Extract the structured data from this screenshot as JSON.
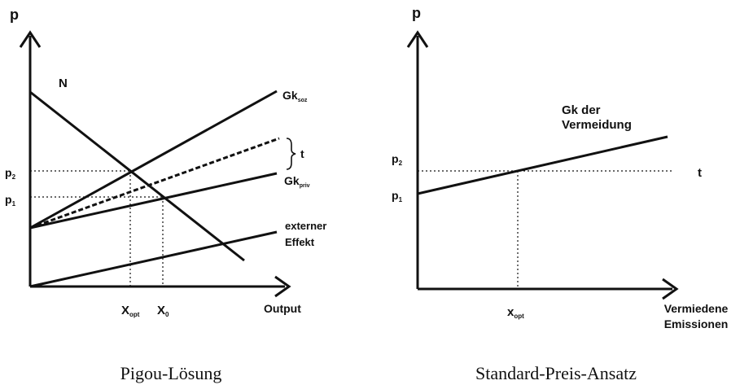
{
  "left": {
    "y_axis_label": "p",
    "x_axis_label": "Output",
    "curve_N": "N",
    "curve_gk_soz": "Gk",
    "curve_gk_soz_sub": "soz",
    "curve_gk_priv": "Gk",
    "curve_gk_priv_sub": "priv",
    "brace_label": "t",
    "external_effect_line1": "externer",
    "external_effect_line2": "Effekt",
    "p2_label": "p",
    "p2_sub": "2",
    "p1_label": "p",
    "p1_sub": "1",
    "xopt_label": "X",
    "xopt_sub": "opt",
    "x0_label": "X",
    "x0_sub": "0",
    "caption": "Pigou-Lösung"
  },
  "right": {
    "y_axis_label": "p",
    "x_axis_label_line1": "Vermiedene",
    "x_axis_label_line2": "Emissionen",
    "curve_label_line1": "Gk der",
    "curve_label_line2": "Vermeidung",
    "t_label": "t",
    "p2_label": "p",
    "p2_sub": "2",
    "p1_label": "p",
    "p1_sub": "1",
    "xopt_label": "x",
    "xopt_sub": "opt",
    "caption": "Standard-Preis-Ansatz"
  }
}
